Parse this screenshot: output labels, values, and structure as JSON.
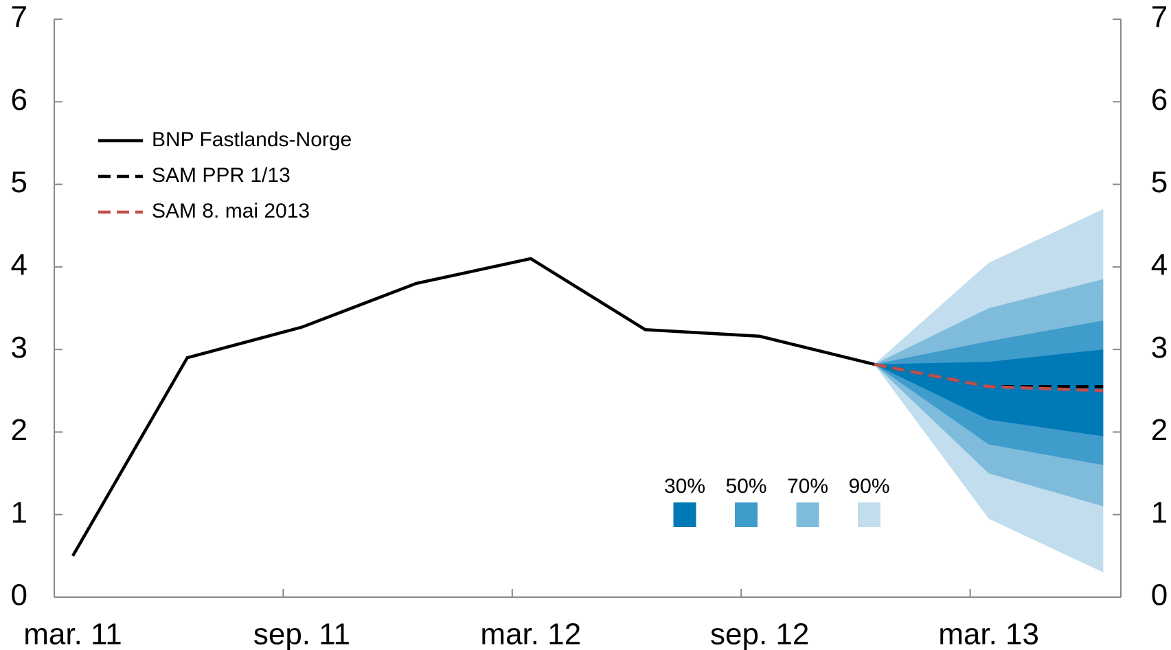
{
  "chart_data": {
    "type": "line",
    "categories": [
      "mar. 11",
      null,
      "sep. 11",
      null,
      "mar. 12",
      null,
      "sep. 12",
      null,
      "mar. 13",
      null
    ],
    "series": [
      {
        "name": "BNP Fastlands-Norge",
        "color": "#000000",
        "dash": "solid",
        "values": [
          0.5,
          2.9,
          3.27,
          3.8,
          4.1,
          3.24,
          3.16,
          2.82,
          null,
          null
        ]
      },
      {
        "name": "SAM PPR 1/13",
        "color": "#000000",
        "dash": "dashed",
        "values": [
          null,
          null,
          null,
          null,
          null,
          null,
          null,
          2.82,
          2.55,
          2.55
        ]
      },
      {
        "name": "SAM 8. mai 2013",
        "color": "#c0504d",
        "dash": "dashed",
        "values": [
          null,
          null,
          null,
          null,
          null,
          null,
          null,
          2.82,
          2.55,
          2.5
        ]
      }
    ],
    "bands": [
      {
        "name": "90%",
        "color": "#c1ddee",
        "lower": [
          null,
          null,
          null,
          null,
          null,
          null,
          null,
          2.82,
          0.95,
          0.3
        ],
        "upper": [
          null,
          null,
          null,
          null,
          null,
          null,
          null,
          2.82,
          4.05,
          4.7
        ]
      },
      {
        "name": "70%",
        "color": "#7fbcdc",
        "lower": [
          null,
          null,
          null,
          null,
          null,
          null,
          null,
          2.82,
          1.5,
          1.1
        ],
        "upper": [
          null,
          null,
          null,
          null,
          null,
          null,
          null,
          2.82,
          3.5,
          3.85
        ]
      },
      {
        "name": "50%",
        "color": "#3f9ccb",
        "lower": [
          null,
          null,
          null,
          null,
          null,
          null,
          null,
          2.82,
          1.85,
          1.6
        ],
        "upper": [
          null,
          null,
          null,
          null,
          null,
          null,
          null,
          2.82,
          3.1,
          3.35
        ]
      },
      {
        "name": "30%",
        "color": "#0079b7",
        "lower": [
          null,
          null,
          null,
          null,
          null,
          null,
          null,
          2.82,
          2.15,
          1.95
        ],
        "upper": [
          null,
          null,
          null,
          null,
          null,
          null,
          null,
          2.82,
          2.85,
          3.0
        ]
      }
    ],
    "ylim": [
      0,
      7
    ],
    "yticks": [
      0,
      1,
      2,
      3,
      4,
      5,
      6,
      7
    ],
    "y2lim": [
      0,
      7
    ],
    "y2ticks": [
      0,
      1,
      2,
      3,
      4,
      5,
      6,
      7
    ]
  }
}
